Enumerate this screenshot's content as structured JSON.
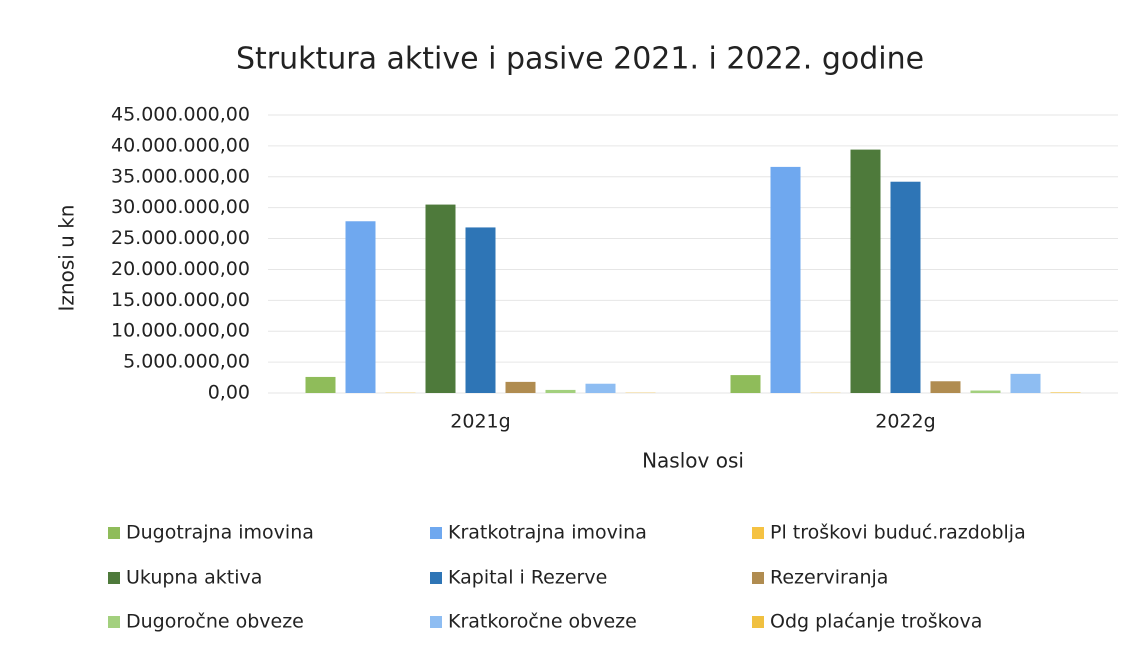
{
  "chart_data": {
    "type": "bar",
    "title": "Struktura aktive i pasive 2021. i 2022. godine",
    "y_axis_label": "Iznosi u kn",
    "x_axis_label": "Naslov osi",
    "categories": [
      "2021g",
      "2022g"
    ],
    "series": [
      {
        "name": "Dugotrajna imovina",
        "color": "#8fbc5a",
        "values": [
          2600000,
          2900000
        ]
      },
      {
        "name": "Kratkotrajna imovina",
        "color": "#6fa8ef",
        "values": [
          27800000,
          36600000
        ]
      },
      {
        "name": "Pl troškovi buduć.razdoblja",
        "color": "#f5c242",
        "values": [
          50000,
          50000
        ]
      },
      {
        "name": "Ukupna aktiva",
        "color": "#4e7a3b",
        "values": [
          30500000,
          39400000
        ]
      },
      {
        "name": "Kapital i Rezerve",
        "color": "#2e75b6",
        "values": [
          26800000,
          34200000
        ]
      },
      {
        "name": "Rezerviranja",
        "color": "#b08c50",
        "values": [
          1800000,
          1900000
        ]
      },
      {
        "name": "Dugoročne obveze",
        "color": "#a3d07e",
        "values": [
          500000,
          400000
        ]
      },
      {
        "name": "Kratkoročne obveze",
        "color": "#8ebdf2",
        "values": [
          1500000,
          3100000
        ]
      },
      {
        "name": "Odg plaćanje troškova",
        "color": "#f0c040",
        "values": [
          50000,
          100000
        ]
      }
    ],
    "ylim": [
      0,
      45000000
    ],
    "yticks": [
      {
        "value": 0,
        "label": "0,00"
      },
      {
        "value": 5000000,
        "label": "5.000.000,00"
      },
      {
        "value": 10000000,
        "label": "10.000.000,00"
      },
      {
        "value": 15000000,
        "label": "15.000.000,00"
      },
      {
        "value": 20000000,
        "label": "20.000.000,00"
      },
      {
        "value": 25000000,
        "label": "25.000.000,00"
      },
      {
        "value": 30000000,
        "label": "30.000.000,00"
      },
      {
        "value": 35000000,
        "label": "35.000.000,00"
      },
      {
        "value": 40000000,
        "label": "40.000.000,00"
      },
      {
        "value": 45000000,
        "label": "45.000.000,00"
      }
    ],
    "grid": true
  }
}
